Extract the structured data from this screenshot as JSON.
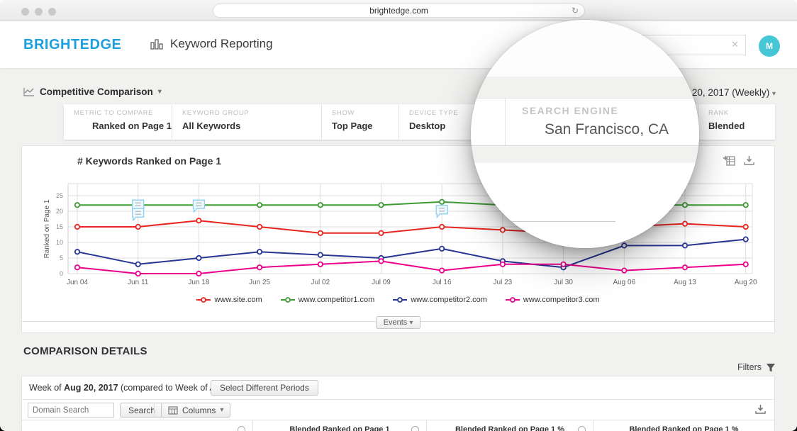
{
  "browser": {
    "url": "brightedge.com",
    "reload_icon": "↻"
  },
  "header": {
    "logo": "BRIGHTEDGE",
    "app_title": "Keyword Reporting",
    "search_value": "",
    "clear_icon": "✕",
    "avatar_initial": "M"
  },
  "toolbar": {
    "view_title": "Competitive Comparison",
    "caret": "▾",
    "date_label": "Aug 20, 2017 (Weekly)"
  },
  "filters": [
    {
      "label": "METRIC TO COMPARE",
      "value": "Ranked on Page 1"
    },
    {
      "label": "KEYWORD GROUP",
      "value": "All Keywords"
    },
    {
      "label": "SHOW",
      "value": "Top Page"
    },
    {
      "label": "DEVICE TYPE",
      "value": "Desktop"
    },
    {
      "label": "SEARCH ENGINE",
      "value": "San Francisco, CA"
    },
    {
      "label": "RANK",
      "value": "Blended"
    }
  ],
  "magnifier": {
    "label": "SEARCH ENGINE",
    "value": "San Francisco, CA",
    "icon": "google-logo"
  },
  "chart_panel": {
    "title": "# Keywords Ranked on Page 1"
  },
  "chart_data": {
    "type": "line",
    "title": "# Keywords Ranked on Page 1",
    "xlabel": "",
    "ylabel": "Ranked on Page 1",
    "ylim": [
      0,
      25
    ],
    "yticks": [
      0,
      5,
      10,
      15,
      20,
      25
    ],
    "grid": true,
    "legend_position": "bottom",
    "categories": [
      "Jun 04",
      "Jun 11",
      "Jun 18",
      "Jun 25",
      "Jul 02",
      "Jul 09",
      "Jul 16",
      "Jul 23",
      "Jul 30",
      "Aug 06",
      "Aug 13",
      "Aug 20"
    ],
    "series": [
      {
        "name": "www.site.com",
        "color": "#e8251f",
        "values": [
          15,
          15,
          17,
          15,
          13,
          13,
          15,
          14,
          13,
          15,
          16,
          15
        ]
      },
      {
        "name": "www.competitor1.com",
        "color": "#3f9c35",
        "values": [
          22,
          22,
          22,
          22,
          22,
          22,
          23,
          22,
          22,
          22,
          22,
          22
        ]
      },
      {
        "name": "www.competitor2.com",
        "color": "#283593",
        "values": [
          7,
          3,
          5,
          7,
          6,
          5,
          8,
          4,
          2,
          9,
          9,
          11
        ]
      },
      {
        "name": "www.competitor3.com",
        "color": "#ec008c",
        "values": [
          2,
          0,
          0,
          2,
          3,
          4,
          1,
          3,
          3,
          1,
          2,
          3
        ]
      }
    ],
    "events": [
      {
        "x_index": 1,
        "count": 2,
        "below": false
      },
      {
        "x_index": 2,
        "count": 1,
        "below": false
      },
      {
        "x_index": 6,
        "count": 1,
        "below": true
      }
    ]
  },
  "events_button": {
    "label": "Events",
    "caret": "▾"
  },
  "comparison": {
    "heading": "COMPARISON DETAILS",
    "filters_label": "Filters",
    "week_prefix": "Week of ",
    "week_bold": "Aug 20, 2017",
    "week_suffix": " (compared to Week of Aug 13, 2017)",
    "select_periods_label": "Select Different Periods",
    "domain_search_placeholder": "Domain Search",
    "search_label": "Search",
    "columns_label": "Columns",
    "columns_caret": "▾",
    "table_headers": [
      "Blended Ranked on Page 1",
      "Blended Ranked on Page 1 %",
      "Blended Ranked on Page 1 %"
    ]
  },
  "colors": {
    "brand": "#1b9fe0",
    "avatar": "#45c7d6",
    "event_bubble": "#8fd0f0",
    "grid_line": "#dddddd"
  }
}
